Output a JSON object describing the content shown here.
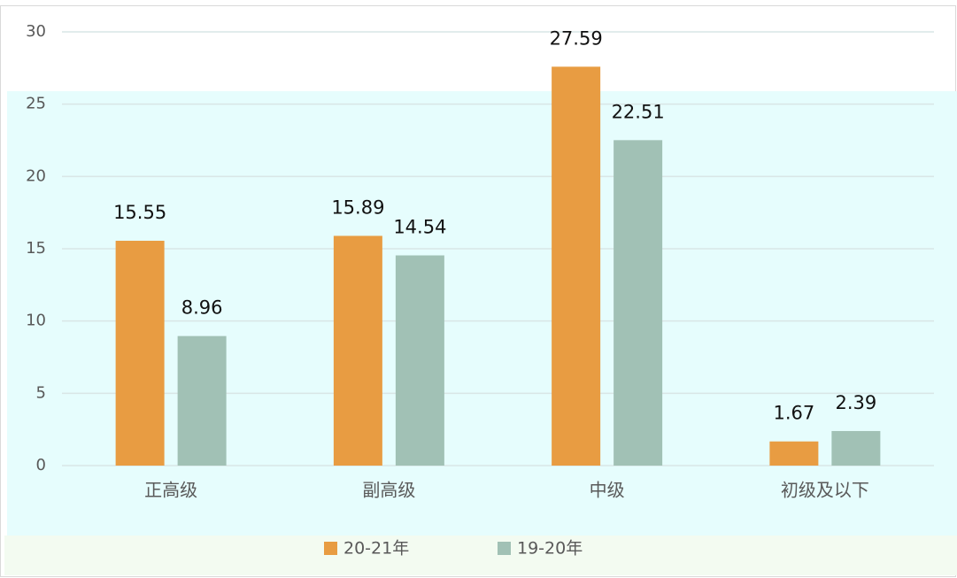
{
  "chart_data": {
    "type": "bar",
    "categories": [
      "正高级",
      "副高级",
      "中级",
      "初级及以下"
    ],
    "series": [
      {
        "name": "20-21年",
        "color": "#e89c42",
        "values": [
          15.55,
          15.89,
          27.59,
          1.67
        ]
      },
      {
        "name": "19-20年",
        "color": "#a1c1b5",
        "values": [
          8.96,
          14.54,
          22.51,
          2.39
        ]
      }
    ],
    "ylim": [
      0,
      30
    ],
    "yticks": [
      0,
      5,
      10,
      15,
      20,
      25,
      30
    ],
    "grid": true,
    "legend": "bottom"
  }
}
